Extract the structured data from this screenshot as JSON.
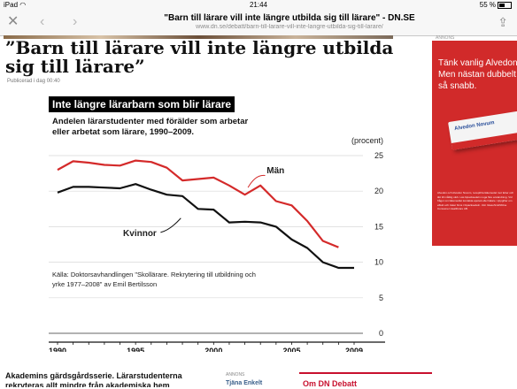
{
  "status_bar": {
    "device": "iPad",
    "wifi_icon": "wifi-icon",
    "time": "21:44",
    "battery": "55 %"
  },
  "browser": {
    "title": "\"Barn till lärare vill inte längre utbilda sig till lärare\" - DN.SE",
    "url": "www.dn.se/debatt/barn-till-larare-vill-inte-langre-utbilda-sig-till-larare/"
  },
  "article": {
    "headline": "”Barn till lärare vill inte längre utbilda sig till lärare”",
    "published": "Publicerad i dag 00:40",
    "teaser_line1": "Akademins gärdsgårdsserie. Lärarstudenterna",
    "teaser_line2": "rekryteras allt mindre från akademiska hem"
  },
  "chart": {
    "title": "Inte längre lärarbarn som blir lärare",
    "subtitle": "Andelen lärarstudenter med förälder som arbetar eller arbetat som lärare, 1990–2009.",
    "unit": "(procent)",
    "source": "Källa: Doktorsavhandlingen \"Skollärare. Rekrytering till utbildning och yrke 1977–2008\" av Emil Bertilsson",
    "label_men": "Män",
    "label_women": "Kvinnor",
    "color_men": "#d42a2a",
    "color_women": "#111111"
  },
  "chart_data": {
    "type": "line",
    "x": [
      1990,
      1991,
      1992,
      1993,
      1994,
      1995,
      1996,
      1997,
      1998,
      1999,
      2000,
      2001,
      2002,
      2003,
      2004,
      2005,
      2006,
      2007,
      2008,
      2009
    ],
    "series": [
      {
        "name": "Män",
        "values": [
          23.0,
          24.2,
          24.0,
          23.7,
          23.6,
          24.3,
          24.1,
          23.3,
          21.5,
          21.7,
          21.9,
          20.8,
          19.5,
          20.8,
          18.6,
          18.0,
          15.8,
          13.0,
          12.1,
          null
        ]
      },
      {
        "name": "Kvinnor",
        "values": [
          19.8,
          20.6,
          20.6,
          20.5,
          20.4,
          21.0,
          20.2,
          19.5,
          19.3,
          17.5,
          17.4,
          15.6,
          15.7,
          15.6,
          15.0,
          13.2,
          12.0,
          10.0,
          9.2,
          9.2
        ]
      }
    ],
    "xlabel": "",
    "ylabel": "",
    "xticks": [
      "1990",
      "1995",
      "2000",
      "2005",
      "2009"
    ],
    "yticks": [
      0,
      5,
      10,
      15,
      20,
      25
    ],
    "ylim": [
      0,
      25
    ],
    "xlim": [
      1990,
      2009
    ],
    "grid": true,
    "legend": "inline labels"
  },
  "bottom": {
    "annons_label": "ANNONS",
    "annons_link": "Tjäna Enkelt",
    "om_dn": "Om DN Debatt"
  },
  "ad": {
    "label": "ANNONS",
    "line1": "Tänk vanlig Alvedon.",
    "line2": "Men nästan dubbelt",
    "line3": "så snabb.",
    "product": "Alvedon Novum",
    "fine_print": "Alvedon och Alvedon Novum, receptfria läkemedel mot feber och lätt till måttlig värk. Läs bipacksedeln noga före användning. Vid frågor om läkemedlet kontakta apotek eller läkare. Uppgifter om effekt och risker finns i bipacksedeln. Utd. GlaxoSmithKline Consumer Healthcare AB."
  }
}
